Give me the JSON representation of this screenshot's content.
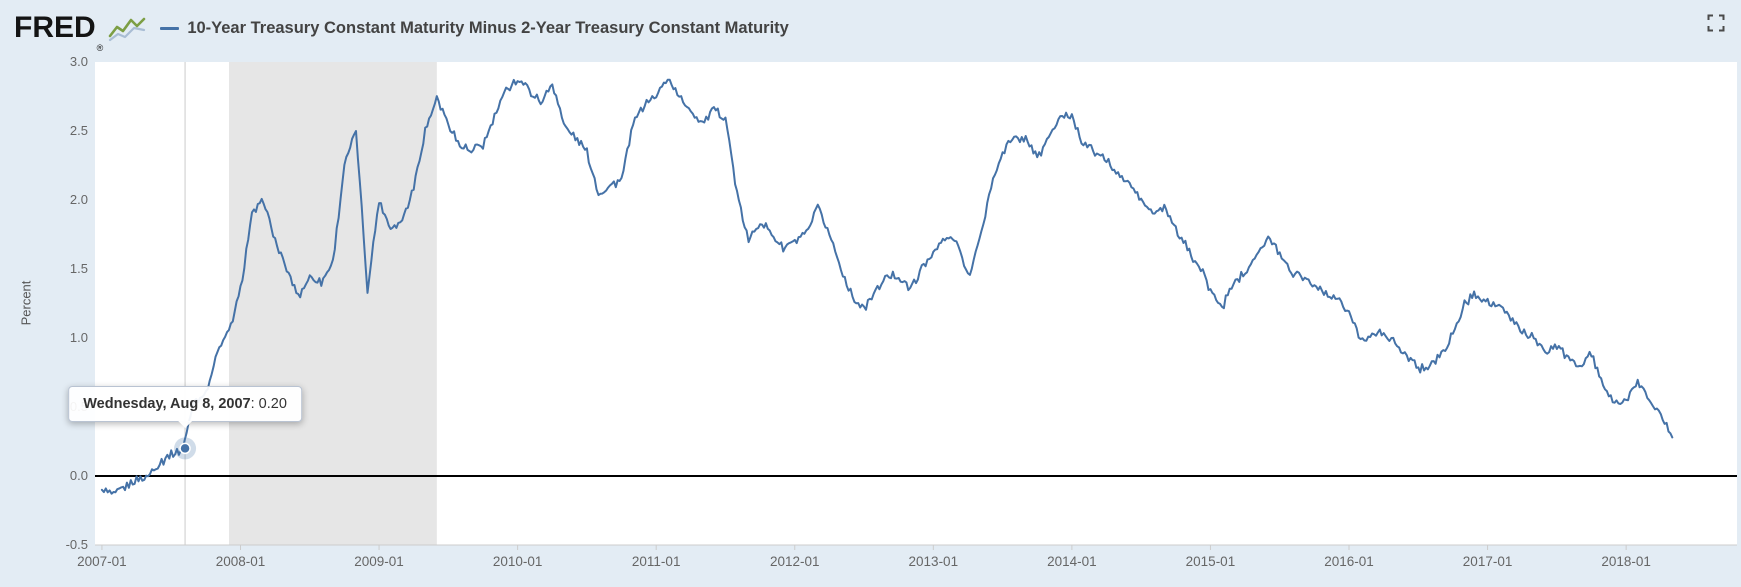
{
  "header": {
    "logo": "FRED",
    "registered_mark": "®",
    "series_title": "10-Year Treasury Constant Maturity Minus 2-Year Treasury Constant Maturity"
  },
  "tooltip": {
    "date_label": "Wednesday, Aug 8, 2007",
    "value_text": ": 0.20"
  },
  "y_axis": {
    "title": "Percent",
    "ticks": [
      "3.0",
      "2.5",
      "2.0",
      "1.5",
      "1.0",
      "0.5",
      "0.0",
      "-0.5"
    ]
  },
  "x_axis": {
    "ticks": [
      "2007-01",
      "2008-01",
      "2009-01",
      "2010-01",
      "2011-01",
      "2012-01",
      "2013-01",
      "2014-01",
      "2015-01",
      "2016-01",
      "2017-01",
      "2018-01"
    ]
  },
  "colors": {
    "page_bg": "#e3ecf4",
    "plot_bg": "#ffffff",
    "line": "#4572a7",
    "zero_line": "#000000",
    "recession_band": "#e6e6e6",
    "crosshair": "#cccccc",
    "axis_line": "#cccccc",
    "axis_text": "#666666",
    "title_text": "#434343",
    "tooltip_border": "#b9c3d2"
  },
  "chart_data": {
    "type": "line",
    "title": "10-Year Treasury Constant Maturity Minus 2-Year Treasury Constant Maturity",
    "ylabel": "Percent",
    "ylim": [
      -0.5,
      3.0
    ],
    "xlim_decimal_years": [
      2006.95,
      2018.8
    ],
    "grid": false,
    "zero_baseline": 0,
    "recession_band_decimal_years": {
      "start": 2007.917,
      "end": 2009.417
    },
    "highlight_point": {
      "date": "Wednesday, Aug 8, 2007",
      "x_decimal_year": 2007.6,
      "value": 0.2
    },
    "series": [
      {
        "name": "10-Year Treasury Constant Maturity Minus 2-Year Treasury Constant Maturity",
        "color": "#4572a7",
        "x_start_decimal_year": 2007.0,
        "x_step_years": 0.0833333,
        "values": [
          -0.1,
          -0.14,
          -0.08,
          -0.03,
          0.0,
          0.1,
          0.15,
          0.2,
          0.55,
          0.6,
          0.9,
          1.05,
          1.35,
          1.9,
          2.0,
          1.7,
          1.5,
          1.3,
          1.45,
          1.4,
          1.55,
          2.25,
          2.5,
          1.35,
          2.0,
          1.8,
          1.85,
          2.1,
          2.5,
          2.75,
          2.55,
          2.4,
          2.35,
          2.4,
          2.6,
          2.8,
          2.88,
          2.8,
          2.7,
          2.85,
          2.55,
          2.45,
          2.35,
          2.05,
          2.1,
          2.15,
          2.55,
          2.7,
          2.75,
          2.88,
          2.75,
          2.65,
          2.55,
          2.65,
          2.6,
          2.05,
          1.7,
          1.85,
          1.75,
          1.65,
          1.7,
          1.75,
          1.95,
          1.75,
          1.5,
          1.3,
          1.2,
          1.35,
          1.45,
          1.45,
          1.35,
          1.5,
          1.62,
          1.72,
          1.7,
          1.45,
          1.7,
          2.1,
          2.35,
          2.45,
          2.45,
          2.3,
          2.45,
          2.6,
          2.62,
          2.4,
          2.35,
          2.28,
          2.18,
          2.12,
          2.0,
          1.9,
          1.95,
          1.78,
          1.65,
          1.52,
          1.35,
          1.22,
          1.4,
          1.48,
          1.62,
          1.72,
          1.62,
          1.48,
          1.45,
          1.38,
          1.32,
          1.28,
          1.18,
          1.0,
          1.02,
          1.05,
          0.95,
          0.88,
          0.78,
          0.8,
          0.88,
          1.02,
          1.25,
          1.32,
          1.26,
          1.22,
          1.15,
          1.05,
          1.0,
          0.88,
          0.95,
          0.85,
          0.8,
          0.88,
          0.65,
          0.53,
          0.55,
          0.68,
          0.55,
          0.45,
          0.28
        ]
      }
    ]
  }
}
